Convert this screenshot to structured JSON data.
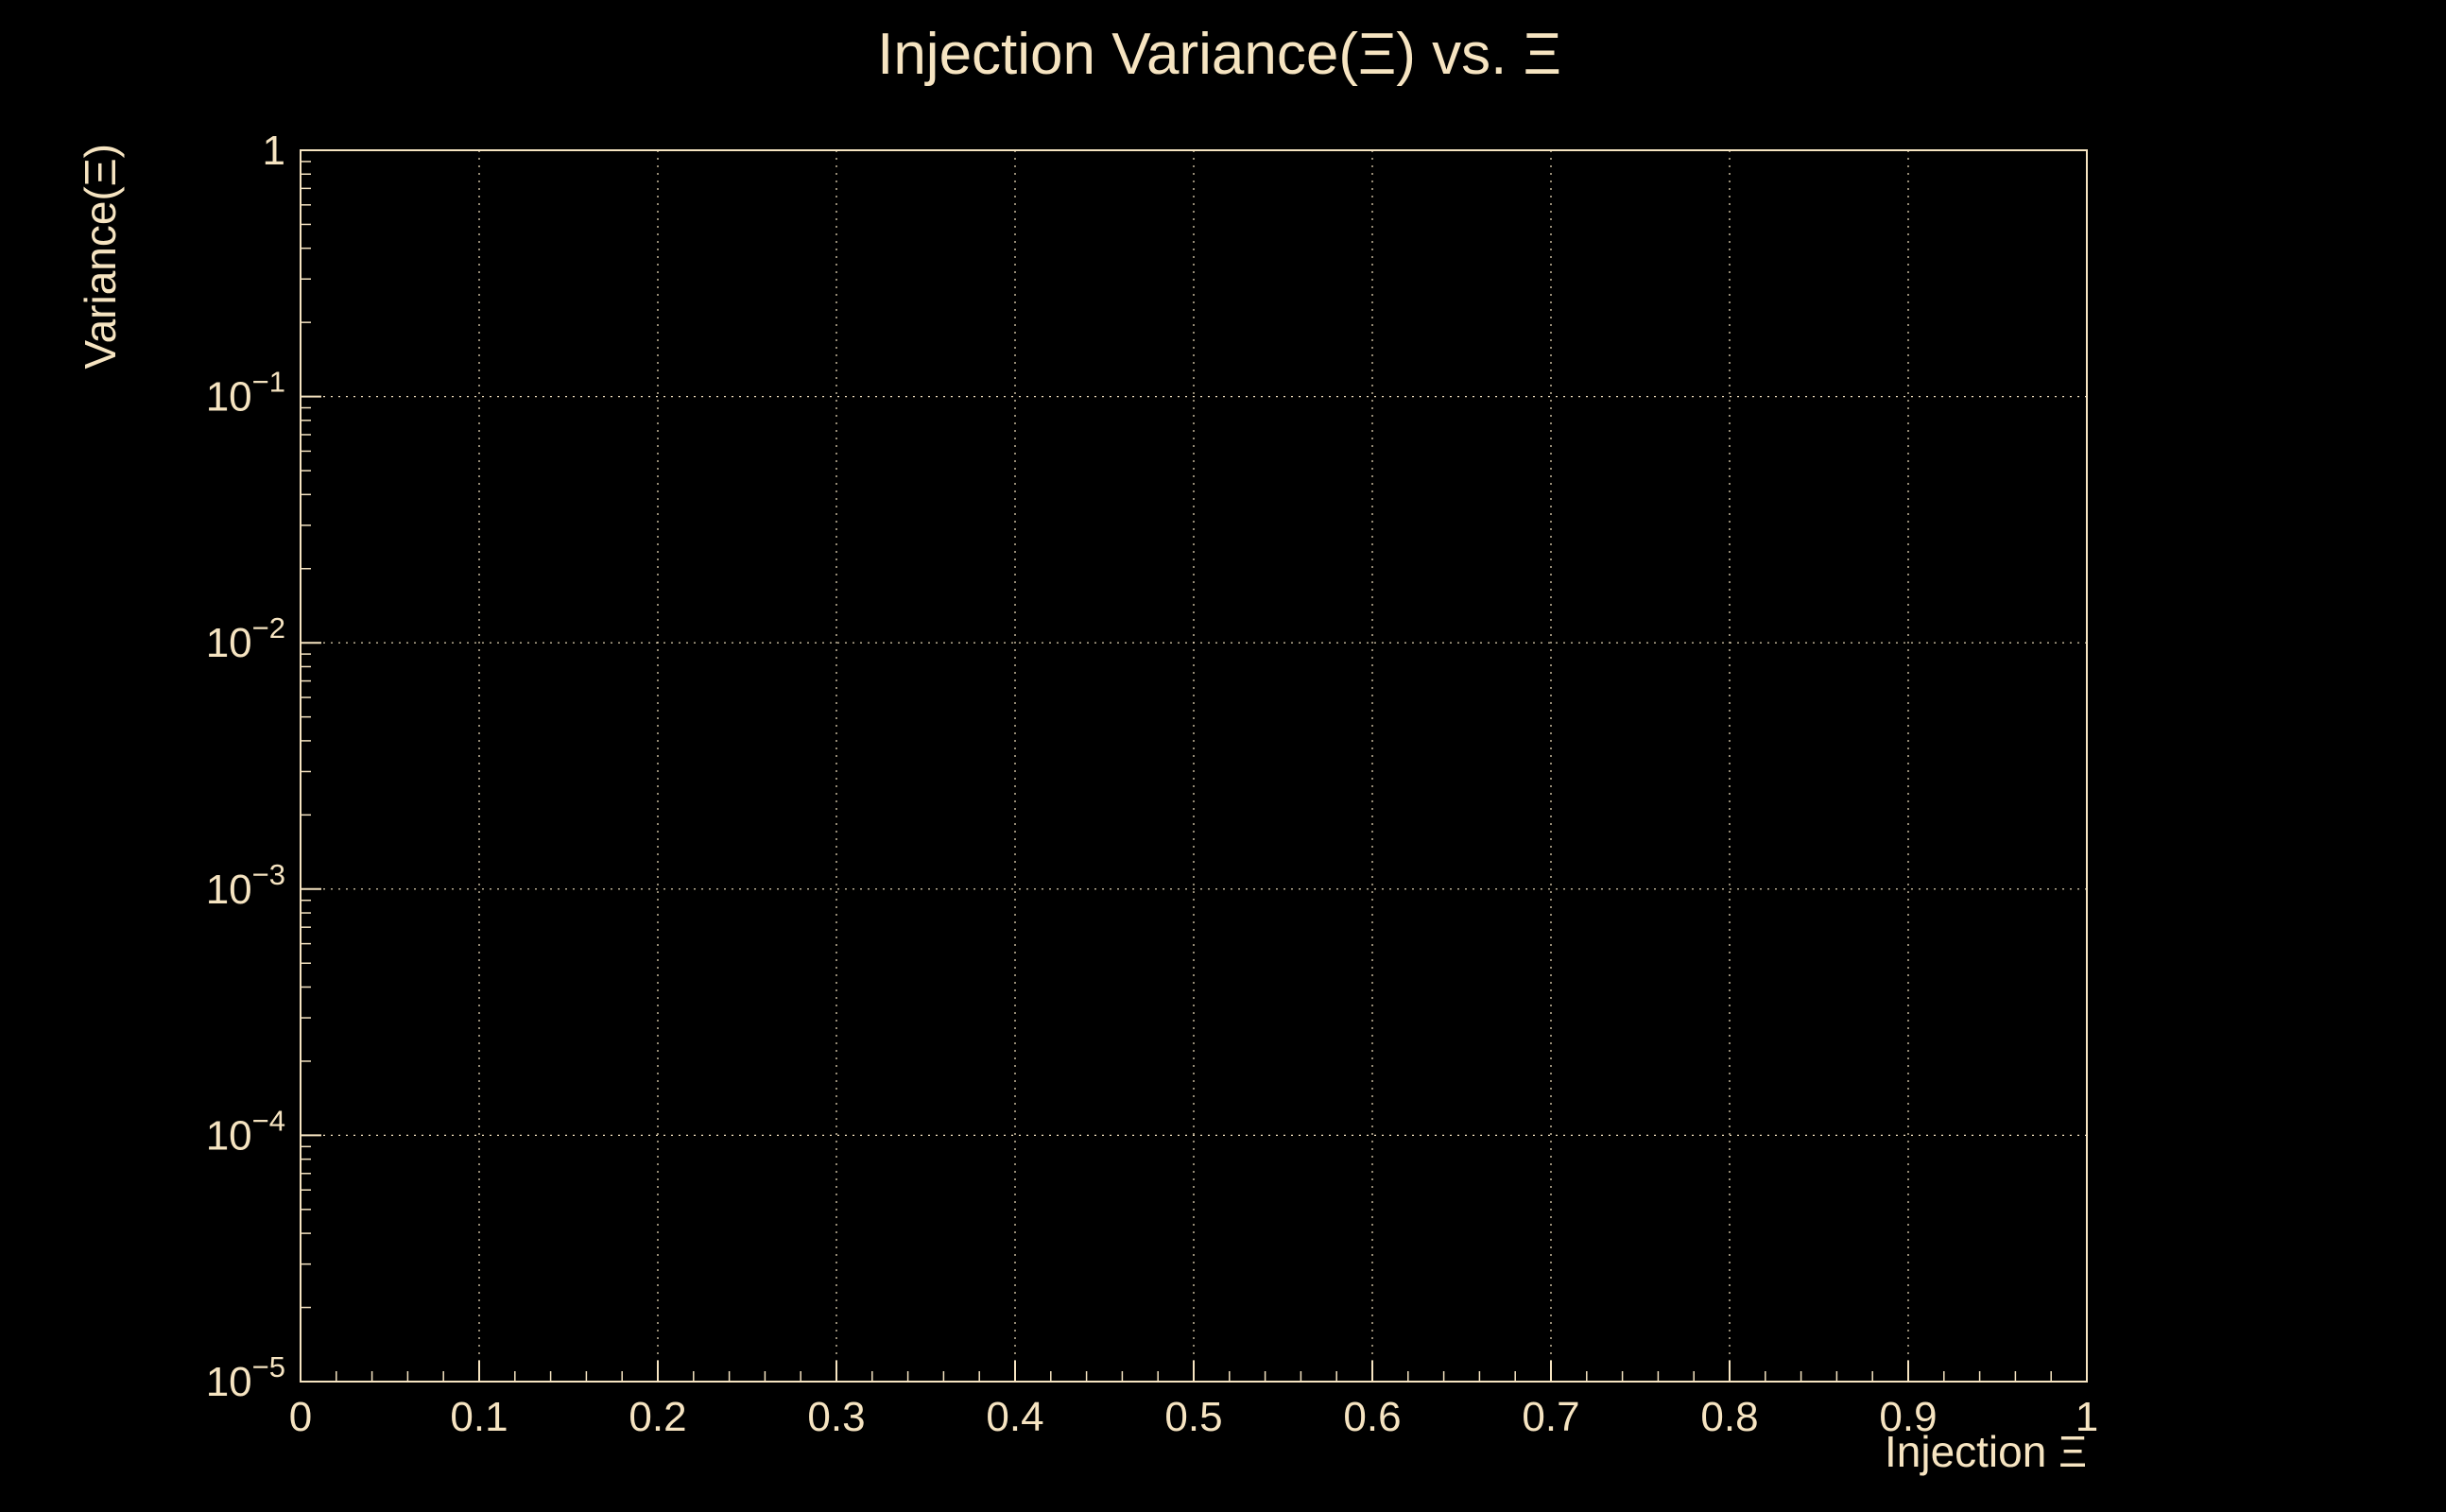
{
  "chart_data": {
    "type": "line",
    "title": "Injection Variance(Ξ) vs. Ξ",
    "xlabel": "Injection Ξ",
    "ylabel": "Variance(Ξ)",
    "xlim": [
      0,
      1
    ],
    "x_major_ticks": [
      0,
      0.1,
      0.2,
      0.3,
      0.4,
      0.5,
      0.6,
      0.7,
      0.8,
      0.9,
      1
    ],
    "x_tick_labels": [
      "0",
      "0.1",
      "0.2",
      "0.3",
      "0.4",
      "0.5",
      "0.6",
      "0.7",
      "0.8",
      "0.9",
      "1"
    ],
    "x_minor_step": 0.02,
    "y_scale": "log",
    "ylim_log": [
      -5,
      0
    ],
    "y_ticks": [
      {
        "log": 0,
        "text": "1"
      },
      {
        "log": -1,
        "base": "10",
        "exp": "−1"
      },
      {
        "log": -2,
        "base": "10",
        "exp": "−2"
      },
      {
        "log": -3,
        "base": "10",
        "exp": "−3"
      },
      {
        "log": -4,
        "base": "10",
        "exp": "−4"
      },
      {
        "log": -5,
        "base": "10",
        "exp": "−5"
      }
    ],
    "grid": true,
    "legend": "none",
    "series": [],
    "colors": {
      "background": "#000000",
      "axis": "#f6e4c1",
      "text": "#f6e4c1",
      "grid": "#f6e4c1"
    }
  }
}
